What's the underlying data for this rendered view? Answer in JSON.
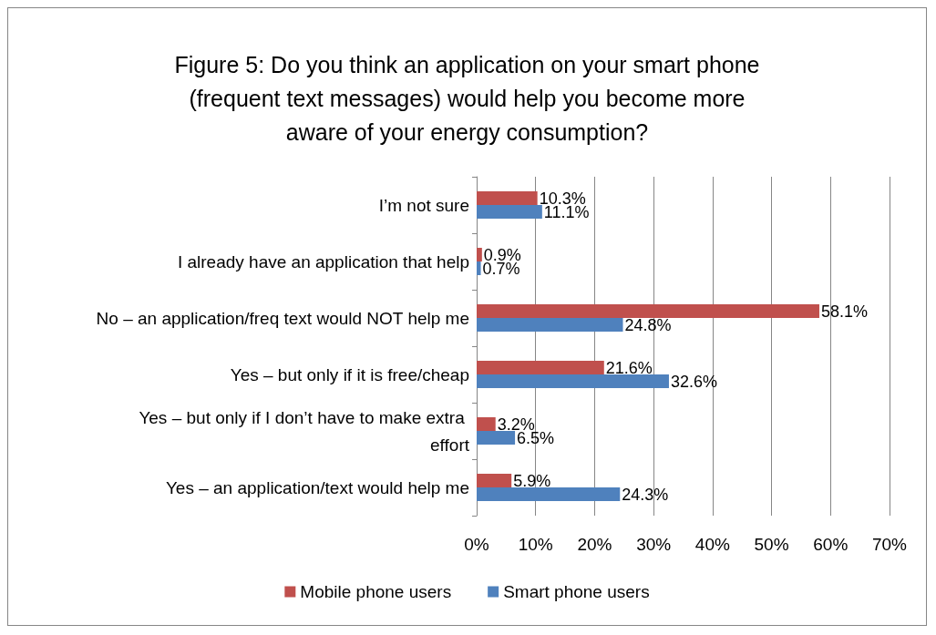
{
  "chart_data": {
    "type": "bar",
    "orientation": "horizontal",
    "title": "Figure 5: Do you think an application on your smart phone (frequent text messages) would help you become more aware of your energy consumption?",
    "categories": [
      "I’m not sure",
      "I already have an application that help",
      "No – an application/freq text would NOT help me",
      "Yes – but only if it is free/cheap",
      "Yes – but only if I don’t have to make extra effort",
      "Yes – an application/text would help me"
    ],
    "series": [
      {
        "name": "Mobile phone users",
        "color": "#c0504d",
        "values": [
          10.3,
          0.9,
          58.1,
          21.6,
          3.2,
          5.9
        ],
        "value_labels": [
          "10.3%",
          "0.9%",
          "58.1%",
          "21.6%",
          "3.2%",
          "5.9%"
        ]
      },
      {
        "name": "Smart phone users",
        "color": "#4f81bd",
        "values": [
          11.1,
          0.7,
          24.8,
          32.6,
          6.5,
          24.3
        ],
        "value_labels": [
          "11.1%",
          "0.7%",
          "24.8%",
          "32.6%",
          "6.5%",
          "24.3%"
        ]
      }
    ],
    "xlim": [
      0,
      70
    ],
    "xticks": [
      {
        "value": 0,
        "label": "0%"
      },
      {
        "value": 10,
        "label": "10%"
      },
      {
        "value": 20,
        "label": "20%"
      },
      {
        "value": 30,
        "label": "30%"
      },
      {
        "value": 40,
        "label": "40%"
      },
      {
        "value": 50,
        "label": "50%"
      },
      {
        "value": 60,
        "label": "60%"
      },
      {
        "value": 70,
        "label": "70%"
      }
    ],
    "grid": "x",
    "legend": "bottom"
  }
}
